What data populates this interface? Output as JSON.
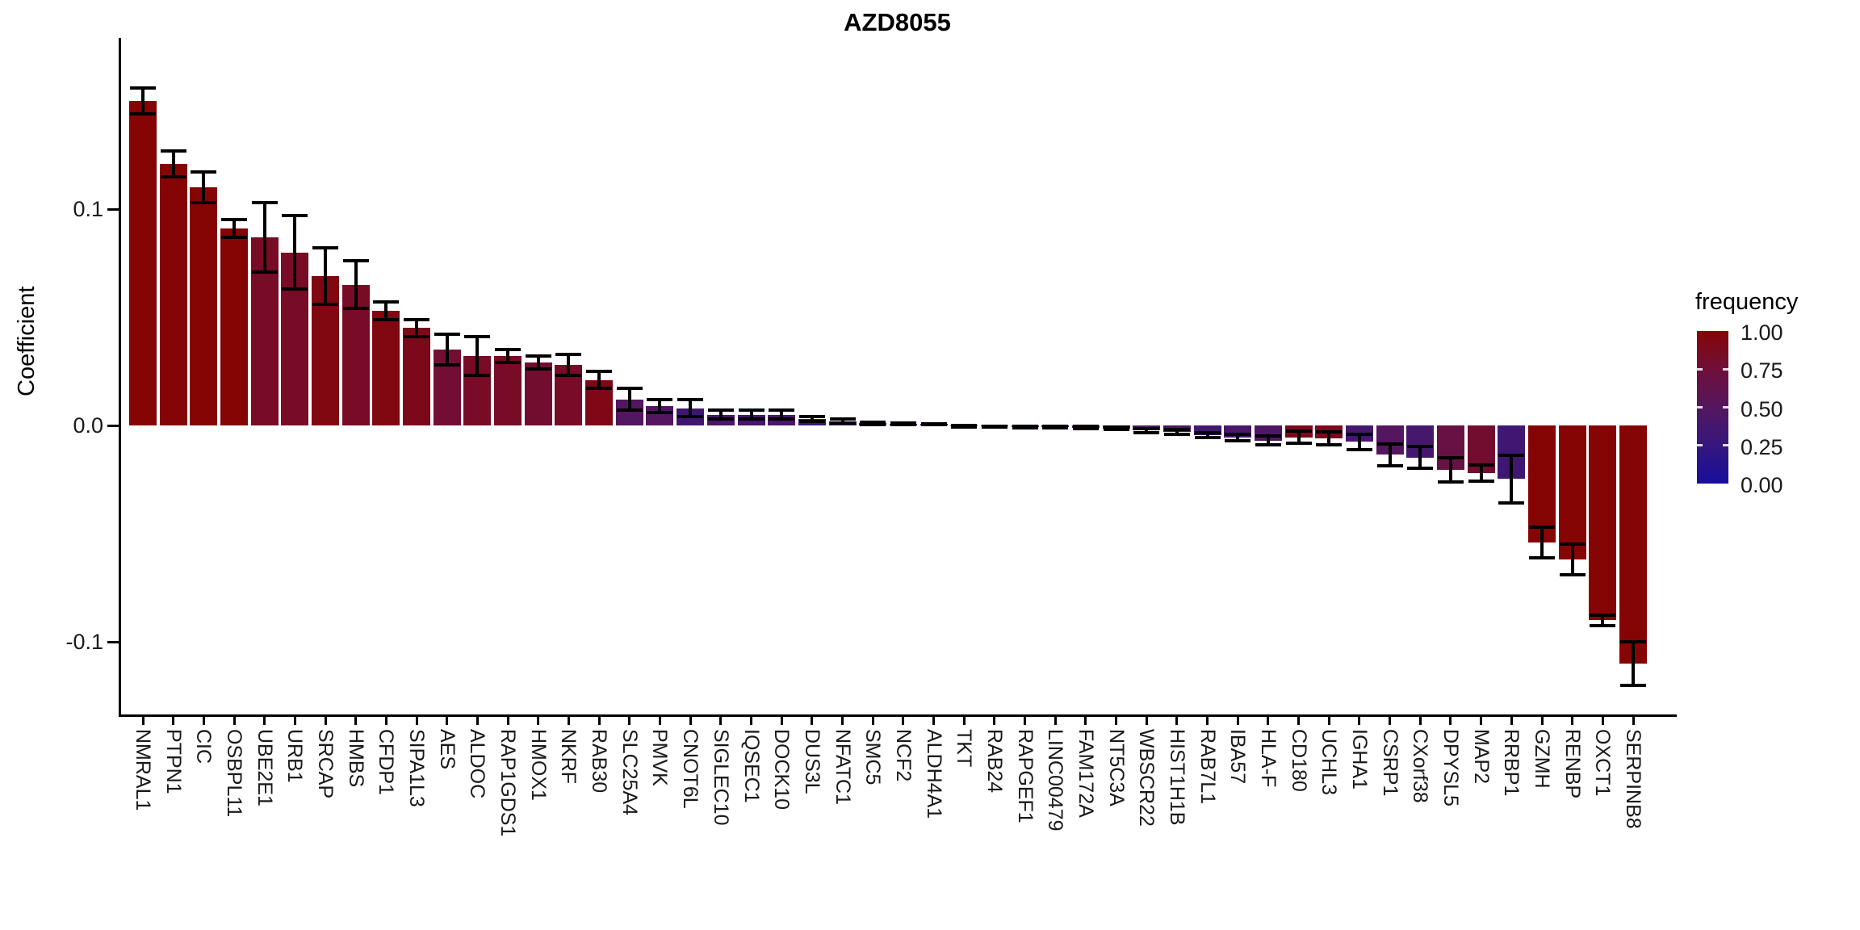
{
  "title": "AZD8055",
  "y_axis": {
    "label": "Coefficient",
    "tick_labels": [
      "0.1",
      "0.0",
      "-0.1"
    ],
    "tick_values": [
      0.1,
      0.0,
      -0.1
    ]
  },
  "legend": {
    "title": "frequency",
    "labels": [
      "1.00",
      "0.75",
      "0.50",
      "0.25",
      "0.00"
    ],
    "gradient_stops": [
      "#850505",
      "#6f0f3a",
      "#54175f",
      "#35177d",
      "#170e9c"
    ]
  },
  "chart_data": {
    "type": "bar",
    "title": "AZD8055",
    "xlabel": "",
    "ylabel": "Coefficient",
    "ylim": [
      -0.134,
      0.179
    ],
    "grid": false,
    "legend_position": "right",
    "color_scale": {
      "name": "frequency",
      "domain": [
        0,
        1
      ],
      "low": "#170e9c",
      "mid": "#54175f",
      "high": "#850505"
    },
    "categories": [
      "NMRAL1",
      "PTPN1",
      "CIC",
      "OSBPL11",
      "UBE2E1",
      "URB1",
      "SRCAP",
      "HMBS",
      "CFDP1",
      "SIPA1L3",
      "AES",
      "ALDOC",
      "RAP1GDS1",
      "HMOX1",
      "NKRF",
      "RAB30",
      "SLC25A4",
      "PMVK",
      "CNOT6L",
      "SIGLEC10",
      "IQSEC1",
      "DOCK10",
      "DUS3L",
      "NFATC1",
      "SMC5",
      "NCF2",
      "ALDH4A1",
      "TKT",
      "RAB24",
      "RAPGEF1",
      "LINC00479",
      "FAM172A",
      "NT5C3A",
      "WBSCR22",
      "HIST1H1B",
      "RAB7L1",
      "IBA57",
      "HLA-F",
      "CD180",
      "UCHL3",
      "IGHA1",
      "CSRP1",
      "CXorf38",
      "DPYSL5",
      "MAP2",
      "RRBP1",
      "GZMH",
      "RENBP",
      "OXCT1",
      "SERPINB8"
    ],
    "values": [
      0.15,
      0.121,
      0.11,
      0.091,
      0.087,
      0.08,
      0.069,
      0.065,
      0.053,
      0.045,
      0.035,
      0.032,
      0.032,
      0.029,
      0.028,
      0.021,
      0.012,
      0.009,
      0.008,
      0.005,
      0.005,
      0.005,
      0.003,
      0.002,
      0.001,
      0.0008,
      0.0006,
      -0.0004,
      -0.0005,
      -0.0006,
      -0.0007,
      -0.001,
      -0.0014,
      -0.0024,
      -0.003,
      -0.0045,
      -0.0055,
      -0.007,
      -0.0055,
      -0.006,
      -0.0075,
      -0.0136,
      -0.0148,
      -0.0205,
      -0.022,
      -0.0247,
      -0.054,
      -0.062,
      -0.09,
      -0.11
    ],
    "errors": [
      0.006,
      0.006,
      0.007,
      0.004,
      0.016,
      0.017,
      0.013,
      0.011,
      0.004,
      0.004,
      0.007,
      0.009,
      0.003,
      0.003,
      0.005,
      0.004,
      0.005,
      0.003,
      0.004,
      0.002,
      0.002,
      0.002,
      0.001,
      0.001,
      0.0005,
      0.0004,
      0.0003,
      0.0003,
      0.0003,
      0.0004,
      0.0004,
      0.0005,
      0.0006,
      0.0009,
      0.001,
      0.0012,
      0.0015,
      0.002,
      0.0028,
      0.003,
      0.0035,
      0.005,
      0.005,
      0.0057,
      0.0037,
      0.011,
      0.007,
      0.007,
      0.0025,
      0.01
    ],
    "frequencies": [
      1.0,
      1.0,
      1.0,
      1.0,
      0.85,
      0.85,
      0.95,
      0.85,
      0.95,
      0.9,
      0.78,
      0.85,
      0.85,
      0.8,
      0.85,
      0.92,
      0.48,
      0.5,
      0.33,
      0.42,
      0.38,
      0.42,
      0.3,
      0.35,
      0.4,
      0.4,
      0.4,
      0.4,
      0.4,
      0.4,
      0.4,
      0.4,
      0.4,
      0.45,
      0.42,
      0.35,
      0.42,
      0.45,
      0.9,
      0.88,
      0.38,
      0.5,
      0.38,
      0.68,
      0.8,
      0.33,
      1.0,
      1.0,
      1.0,
      1.0
    ]
  }
}
